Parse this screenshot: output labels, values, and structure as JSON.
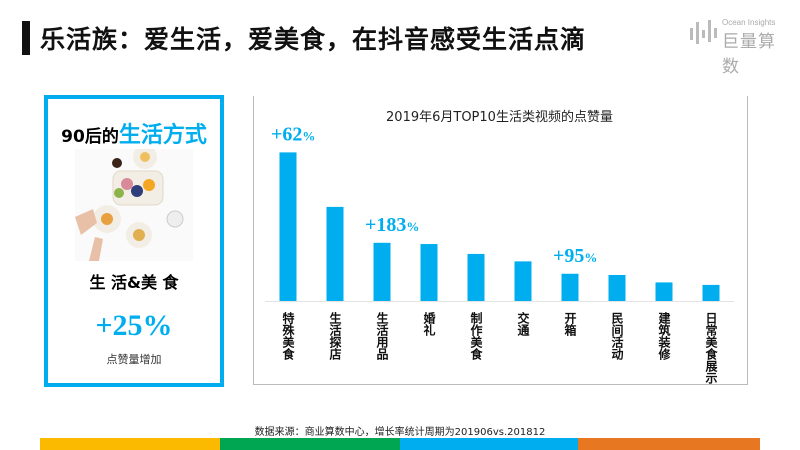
{
  "header": {
    "title": "乐活族：爱生活，爱美食，在抖音感受生活点滴",
    "logo_en": "Ocean Insights",
    "logo_cn": "巨量算数"
  },
  "left_card": {
    "title_prefix": "90后的",
    "title_highlight": "生活方式",
    "subtitle": "生 活&美 食",
    "growth": "+25%",
    "caption": "点赞量增加"
  },
  "chart_data": {
    "type": "bar",
    "title": "2019年6月TOP10生活类视频的点赞量",
    "xlabel": "",
    "ylabel": "",
    "grid": false,
    "ylim": [
      0,
      130
    ],
    "categories": [
      "特殊美食",
      "生活探店",
      "生活用品",
      "婚礼",
      "制作美食",
      "交通",
      "开箱",
      "民间活动",
      "建筑装修",
      "日常美食展示"
    ],
    "values": [
      120,
      76,
      47,
      46,
      38,
      32,
      22,
      21,
      15,
      13
    ],
    "annotations": [
      {
        "category": "特殊美食",
        "text": "+62%"
      },
      {
        "category": "生活用品",
        "text": "+183%"
      },
      {
        "category": "开箱",
        "text": "+95%"
      }
    ],
    "color": "#00aeef"
  },
  "footer": {
    "source": "数据来源：商业算数中心，增长率统计周期为201906vs.201812",
    "strip_colors": [
      "#fbb900",
      "#00a651",
      "#00aeef",
      "#e87722"
    ]
  }
}
